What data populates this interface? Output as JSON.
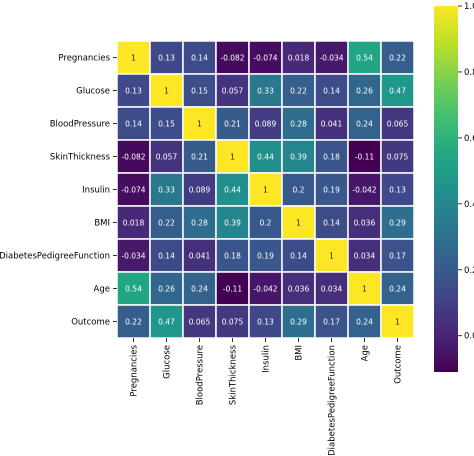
{
  "chart_data": {
    "type": "heatmap",
    "title": "",
    "xlabel": "",
    "ylabel": "",
    "labels": [
      "Pregnancies",
      "Glucose",
      "BloodPressure",
      "SkinThickness",
      "Insulin",
      "BMI",
      "DiabetesPedigreeFunction",
      "Age",
      "Outcome"
    ],
    "values": [
      [
        1,
        0.13,
        0.14,
        -0.082,
        -0.074,
        0.018,
        -0.034,
        0.54,
        0.22
      ],
      [
        0.13,
        1,
        0.15,
        0.057,
        0.33,
        0.22,
        0.14,
        0.26,
        0.47
      ],
      [
        0.14,
        0.15,
        1,
        0.21,
        0.089,
        0.28,
        0.041,
        0.24,
        0.065
      ],
      [
        -0.082,
        0.057,
        0.21,
        1,
        0.44,
        0.39,
        0.18,
        -0.11,
        0.075
      ],
      [
        -0.074,
        0.33,
        0.089,
        0.44,
        1,
        0.2,
        0.19,
        -0.042,
        0.13
      ],
      [
        0.018,
        0.22,
        0.28,
        0.39,
        0.2,
        1,
        0.14,
        0.036,
        0.29
      ],
      [
        -0.034,
        0.14,
        0.041,
        0.18,
        0.19,
        0.14,
        1,
        0.034,
        0.17
      ],
      [
        0.54,
        0.26,
        0.24,
        -0.11,
        -0.042,
        0.036,
        0.034,
        1,
        0.24
      ],
      [
        0.22,
        0.47,
        0.065,
        0.075,
        0.13,
        0.29,
        0.17,
        0.24,
        1
      ]
    ],
    "annotations": [
      [
        "1",
        "0.13",
        "0.14",
        "-0.082",
        "-0.074",
        "0.018",
        "-0.034",
        "0.54",
        "0.22"
      ],
      [
        "0.13",
        "1",
        "0.15",
        "0.057",
        "0.33",
        "0.22",
        "0.14",
        "0.26",
        "0.47"
      ],
      [
        "0.14",
        "0.15",
        "1",
        "0.21",
        "0.089",
        "0.28",
        "0.041",
        "0.24",
        "0.065"
      ],
      [
        "-0.082",
        "0.057",
        "0.21",
        "1",
        "0.44",
        "0.39",
        "0.18",
        "-0.11",
        "0.075"
      ],
      [
        "-0.074",
        "0.33",
        "0.089",
        "0.44",
        "1",
        "0.2",
        "0.19",
        "-0.042",
        "0.13"
      ],
      [
        "0.018",
        "0.22",
        "0.28",
        "0.39",
        "0.2",
        "1",
        "0.14",
        "0.036",
        "0.29"
      ],
      [
        "-0.034",
        "0.14",
        "0.041",
        "0.18",
        "0.19",
        "0.14",
        "1",
        "0.034",
        "0.17"
      ],
      [
        "0.54",
        "0.26",
        "0.24",
        "-0.11",
        "-0.042",
        "0.036",
        "0.034",
        "1",
        "0.24"
      ],
      [
        "0.22",
        "0.47",
        "0.065",
        "0.075",
        "0.13",
        "0.29",
        "0.17",
        "0.24",
        "1"
      ]
    ],
    "colormap": "viridis",
    "vmin": -0.11,
    "vmax": 1,
    "colorbar": {
      "ticks": [
        0.0,
        0.2,
        0.4,
        0.6,
        0.8,
        1.0
      ],
      "tick_labels": [
        "0.0",
        "0.2",
        "0.4",
        "0.6",
        "0.8",
        "1.0"
      ],
      "placement": "right"
    },
    "grid": true,
    "gridline_color": "#ffffff",
    "x_tick_rotation": "vertical"
  }
}
